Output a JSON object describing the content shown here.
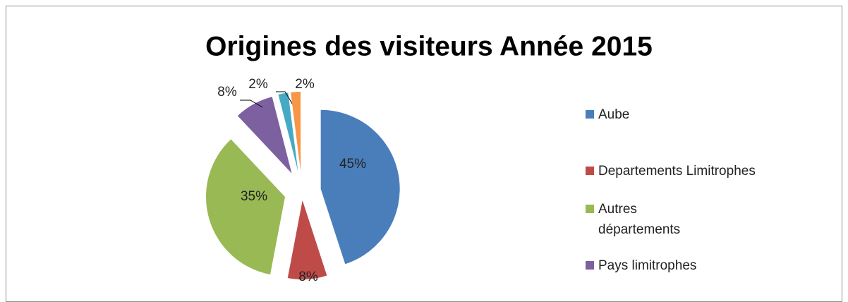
{
  "chart_data": {
    "type": "pie",
    "title": "Origines des visiteurs Année 2015",
    "categories": [
      "Aube",
      "Departements Limitrophes",
      "Autres départements",
      "Pays limitrophes",
      null,
      null
    ],
    "values": [
      45,
      8,
      35,
      8,
      2,
      2
    ],
    "value_labels": [
      "45%",
      "8%",
      "35%",
      "8%",
      "2%",
      "2%"
    ],
    "colors": [
      "#4a7ebb",
      "#be4b48",
      "#98b954",
      "#7d60a0",
      "#46aac5",
      "#f79646"
    ],
    "legend": "right"
  }
}
